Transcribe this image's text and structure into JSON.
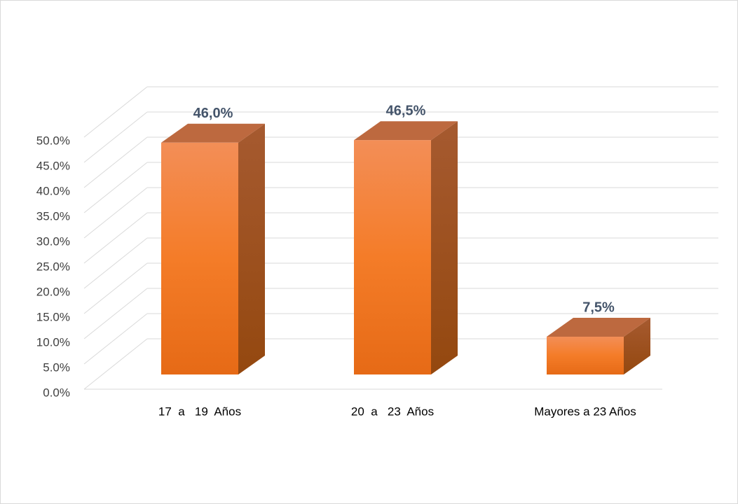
{
  "chart_data": {
    "type": "bar3d",
    "categories": [
      "17  a   19  Años",
      "20  a   23  Años",
      "Mayores a 23 Años"
    ],
    "values": [
      46.0,
      46.5,
      7.5
    ],
    "value_labels": [
      "46,0%",
      "46,5%",
      "7,5%"
    ],
    "color": "#f07f2f",
    "ylim": [
      0,
      50
    ],
    "yticks": [
      {
        "value": 0,
        "label": "0.0%"
      },
      {
        "value": 5,
        "label": "5.0%"
      },
      {
        "value": 10,
        "label": "10.0%"
      },
      {
        "value": 15,
        "label": "15.0%"
      },
      {
        "value": 20,
        "label": "20.0%"
      },
      {
        "value": 25,
        "label": "25.0%"
      },
      {
        "value": 30,
        "label": "30.0%"
      },
      {
        "value": 35,
        "label": "35.0%"
      },
      {
        "value": 40,
        "label": "40.0%"
      },
      {
        "value": 45,
        "label": "45.0%"
      },
      {
        "value": 50,
        "label": "50.0%"
      }
    ],
    "grid": true
  }
}
